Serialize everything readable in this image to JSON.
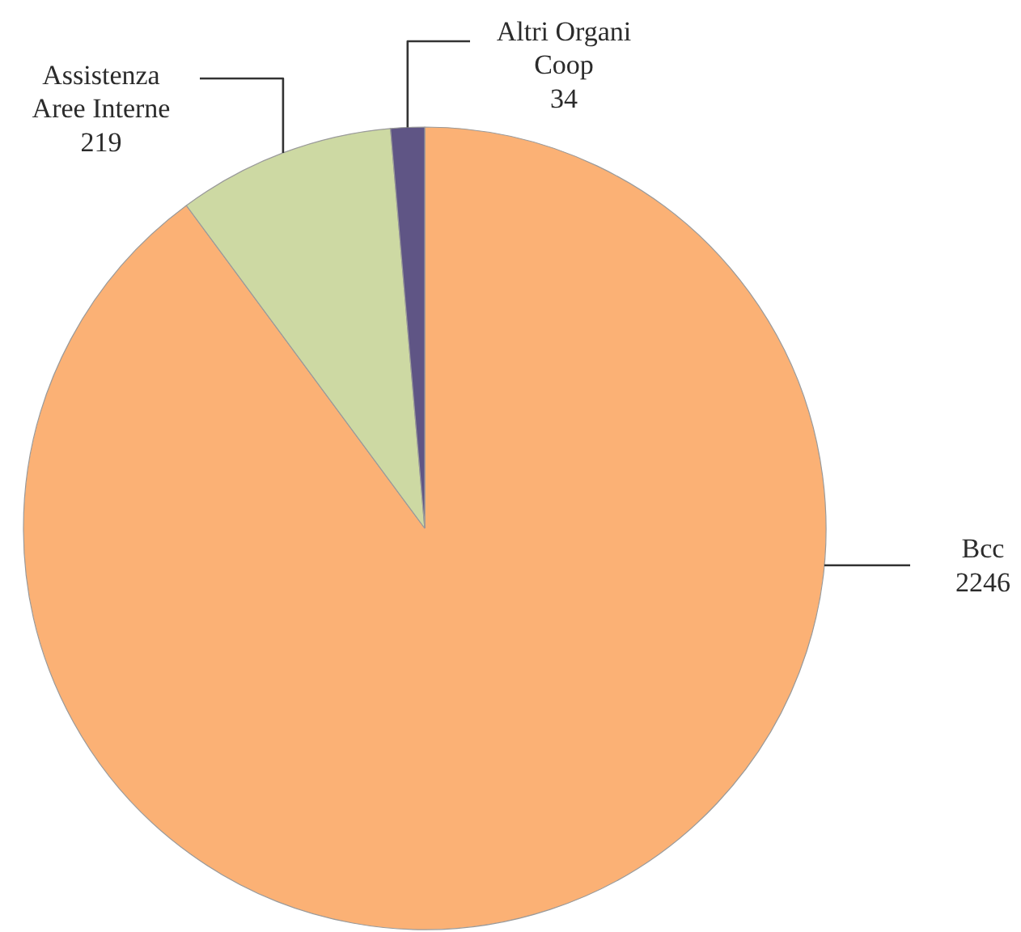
{
  "chart_data": {
    "type": "pie",
    "categories": [
      "Bcc",
      "Assistenza Aree Interne",
      "Altri Organi Coop"
    ],
    "values": [
      2246,
      219,
      34
    ],
    "colors": [
      "#fbb175",
      "#cdd9a3",
      "#5f5585"
    ],
    "data_labels": true
  }
}
